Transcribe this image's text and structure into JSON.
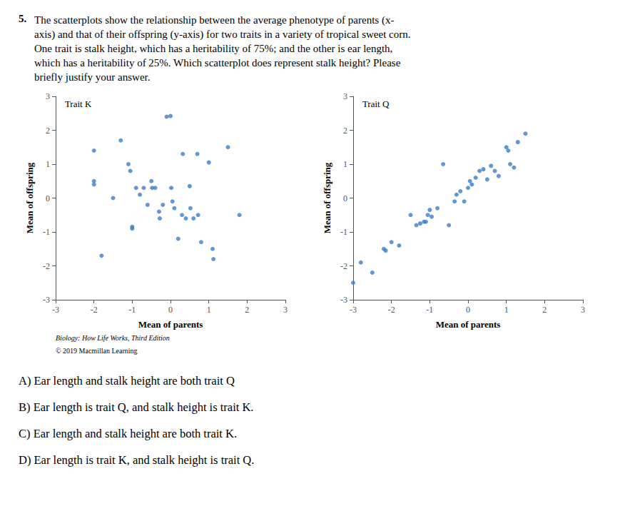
{
  "question_number": "5.",
  "question": "The scatterplots show the relationship between the average phenotype of parents (x-\naxis) and that of their offspring (y-axis) for two traits in a variety of tropical sweet corn.\nOne trait is stalk height, which has a heritability of 75%; and the other is ear length,\nwhich has a heritability of 25%. Which scatterplot does represent stalk height? Please\nbriefly justify your answer.",
  "citation": [
    "Biology: How Life Works, Third Edition",
    "© 2019 Macmillan Learning"
  ],
  "answers": [
    "A) Ear length and stalk height are both trait Q",
    "B) Ear length is trait Q, and stalk height is trait K.",
    "C) Ear length and stalk height are both trait K.",
    "D) Ear length is trait K, and stalk height is trait Q."
  ],
  "chart_data": [
    {
      "type": "scatter",
      "annotation": "Trait K",
      "xlabel": "Mean of parents",
      "ylabel": "Mean of offspring",
      "x": [
        -2.0,
        -2.0,
        -2.0,
        -1.8,
        -1.5,
        -1.3,
        -1.1,
        -1.05,
        -1.0,
        -1.0,
        -0.9,
        -0.8,
        -0.7,
        -0.6,
        -0.5,
        -0.48,
        -0.4,
        -0.3,
        -0.28,
        -0.2,
        -0.1,
        0.0,
        0.02,
        0.05,
        0.1,
        0.2,
        0.3,
        0.32,
        0.4,
        0.5,
        0.52,
        0.6,
        0.7,
        0.72,
        0.8,
        1.0,
        1.1,
        1.12,
        1.5,
        1.8
      ],
      "values": [
        1.4,
        0.5,
        0.4,
        -1.7,
        0.0,
        1.7,
        1.0,
        0.8,
        -0.85,
        -0.9,
        0.3,
        0.1,
        0.3,
        -0.2,
        0.5,
        0.3,
        0.3,
        -0.4,
        -0.6,
        -0.2,
        2.4,
        2.42,
        0.3,
        -0.1,
        -0.3,
        -1.2,
        -0.5,
        1.3,
        -0.6,
        0.35,
        -0.3,
        -0.6,
        1.3,
        -0.5,
        -1.3,
        1.05,
        -1.5,
        -1.8,
        1.5,
        -0.5
      ],
      "color": "#3b7dc8",
      "xlim": [
        -3,
        3
      ],
      "ylim": [
        -3,
        3
      ],
      "xticks": [
        -3,
        -2,
        -1,
        0,
        1,
        2,
        3
      ],
      "yticks": [
        -3,
        -2,
        -1,
        0,
        1,
        2,
        3
      ],
      "grid": false
    },
    {
      "type": "scatter",
      "annotation": "Trait Q",
      "xlabel": "Mean of parents",
      "ylabel": "Mean of offspring",
      "x": [
        -3.0,
        -2.8,
        -2.5,
        -2.2,
        -2.15,
        -2.0,
        -1.8,
        -1.5,
        -1.35,
        -1.25,
        -1.15,
        -1.1,
        -1.05,
        -1.0,
        -0.95,
        -0.8,
        -0.65,
        -0.5,
        -0.35,
        -0.3,
        -0.2,
        -0.1,
        0.0,
        0.05,
        0.1,
        0.2,
        0.3,
        0.4,
        0.5,
        0.6,
        0.7,
        0.8,
        1.0,
        1.05,
        1.1,
        1.2,
        1.3,
        1.5
      ],
      "values": [
        -2.5,
        -1.9,
        -2.2,
        -1.5,
        -1.55,
        -1.3,
        -1.4,
        -0.5,
        -0.8,
        -0.75,
        -0.7,
        -0.7,
        -0.5,
        -0.35,
        -0.55,
        -0.3,
        1.0,
        -0.8,
        -0.1,
        0.1,
        0.2,
        -0.1,
        0.3,
        0.5,
        0.4,
        0.6,
        0.8,
        0.85,
        0.55,
        0.95,
        0.8,
        0.65,
        1.5,
        1.4,
        1.0,
        0.9,
        1.65,
        1.9
      ],
      "color": "#3b7dc8",
      "xlim": [
        -3,
        3
      ],
      "ylim": [
        -3,
        3
      ],
      "xticks": [
        -3,
        -2,
        -1,
        0,
        1,
        2,
        3
      ],
      "yticks": [
        -3,
        -2,
        -1,
        0,
        1,
        2,
        3
      ],
      "grid": false
    }
  ]
}
